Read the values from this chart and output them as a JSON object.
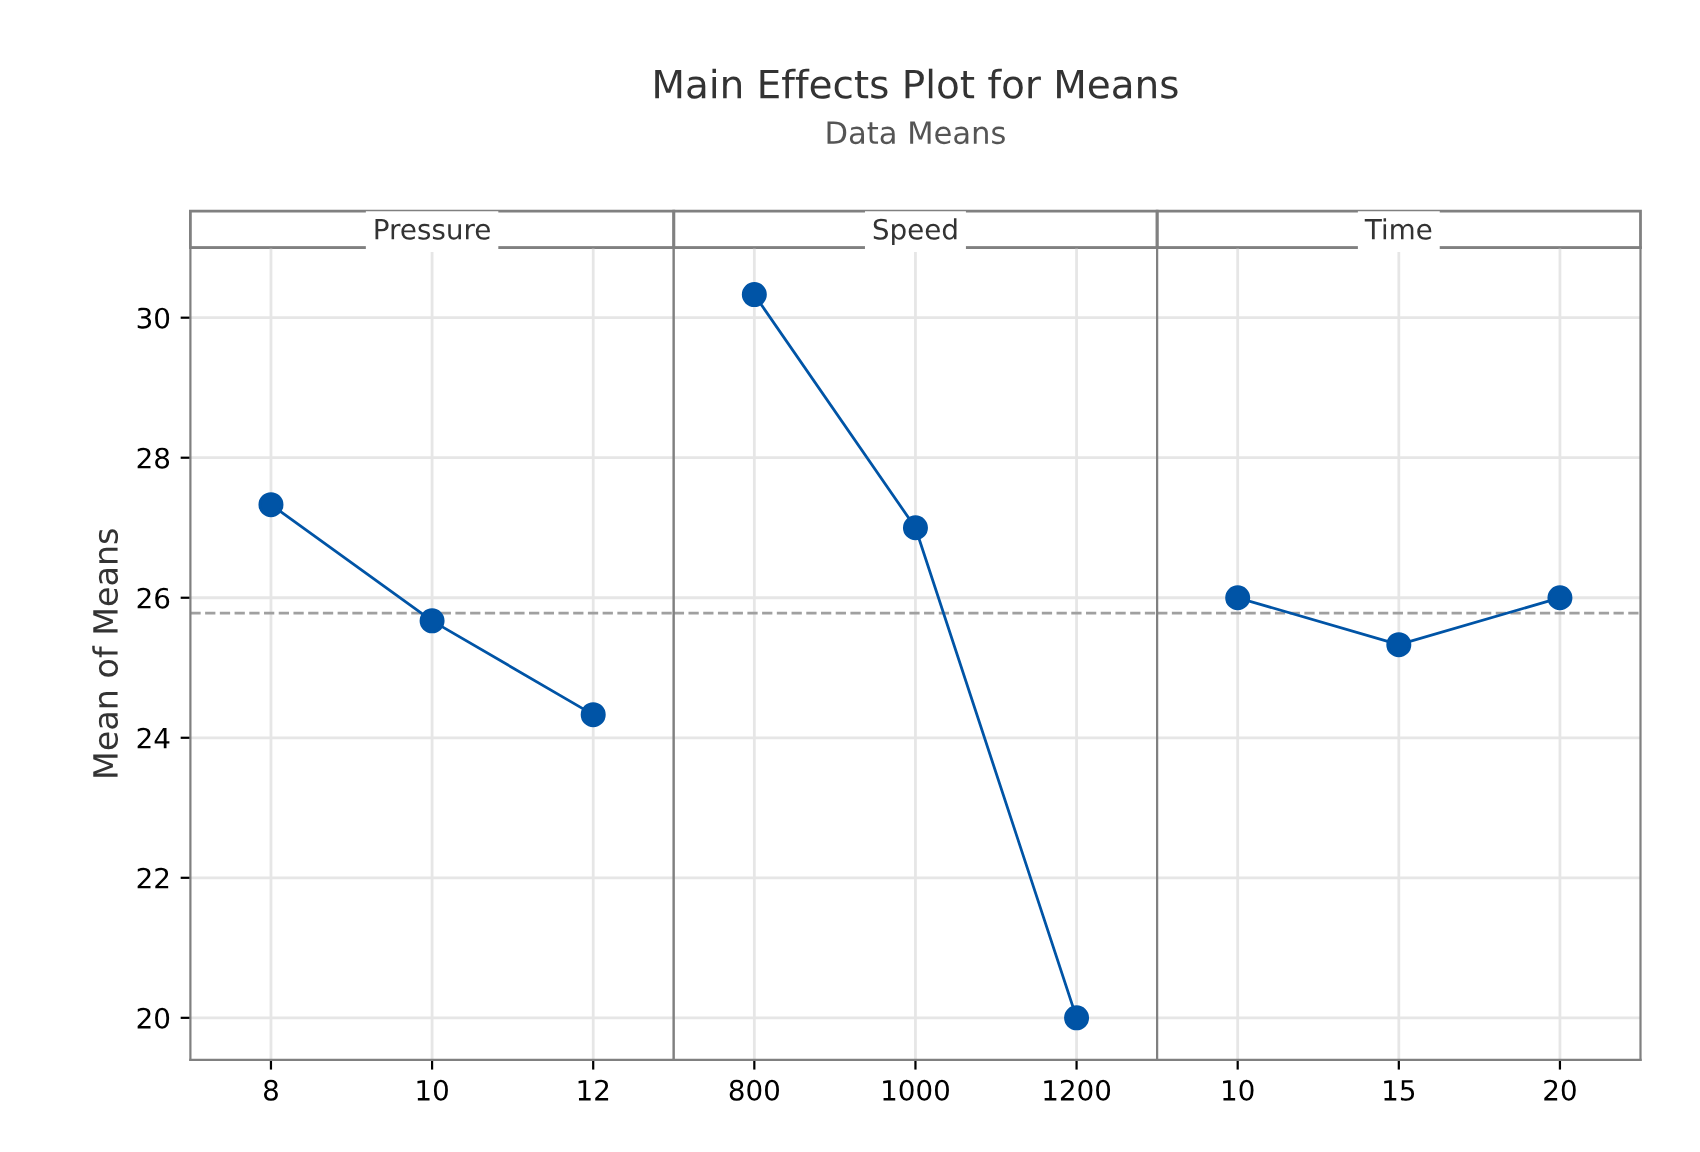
{
  "chart_data": [
    {
      "type": "line",
      "xlabel": "Pressure",
      "ylabel": "Mean of Means",
      "categories": [
        "8",
        "10",
        "12"
      ],
      "series": [
        {
          "color": "#0054a6",
          "values": [
            27.33,
            25.67,
            24.33
          ]
        }
      ],
      "ylim": [
        19.4,
        31.0
      ],
      "yticks": [
        20,
        22,
        24,
        26,
        28,
        30
      ],
      "grid": true,
      "marker": "circle",
      "line_style": "solid",
      "ref_lines": [
        {
          "axis": "y",
          "value": 25.78,
          "color": "#a0a0a0",
          "line_style": "dashed"
        }
      ]
    },
    {
      "type": "line",
      "title": "Main Effects Plot for Means",
      "subtitle": "Data Means",
      "xlabel": "Speed",
      "categories": [
        "800",
        "1000",
        "1200"
      ],
      "series": [
        {
          "color": "#0054a6",
          "values": [
            30.33,
            27.0,
            20.0
          ]
        }
      ],
      "ylim": [
        19.4,
        31.0
      ],
      "yticks": [
        20,
        22,
        24,
        26,
        28,
        30
      ],
      "grid": true,
      "marker": "circle",
      "line_style": "solid",
      "tick_labels": "x",
      "ref_lines": [
        {
          "axis": "y",
          "value": 25.78,
          "color": "#a0a0a0",
          "line_style": "dashed"
        }
      ]
    },
    {
      "type": "line",
      "xlabel": "Time",
      "categories": [
        "10",
        "15",
        "20"
      ],
      "series": [
        {
          "color": "#0054a6",
          "values": [
            26.0,
            25.33,
            26.0
          ]
        }
      ],
      "ylim": [
        19.4,
        31.0
      ],
      "yticks": [
        20,
        22,
        24,
        26,
        28,
        30
      ],
      "grid": true,
      "marker": "circle",
      "line_style": "solid",
      "tick_labels": "x",
      "ref_lines": [
        {
          "axis": "y",
          "value": 25.78,
          "color": "#a0a0a0",
          "line_style": "dashed"
        }
      ]
    }
  ]
}
